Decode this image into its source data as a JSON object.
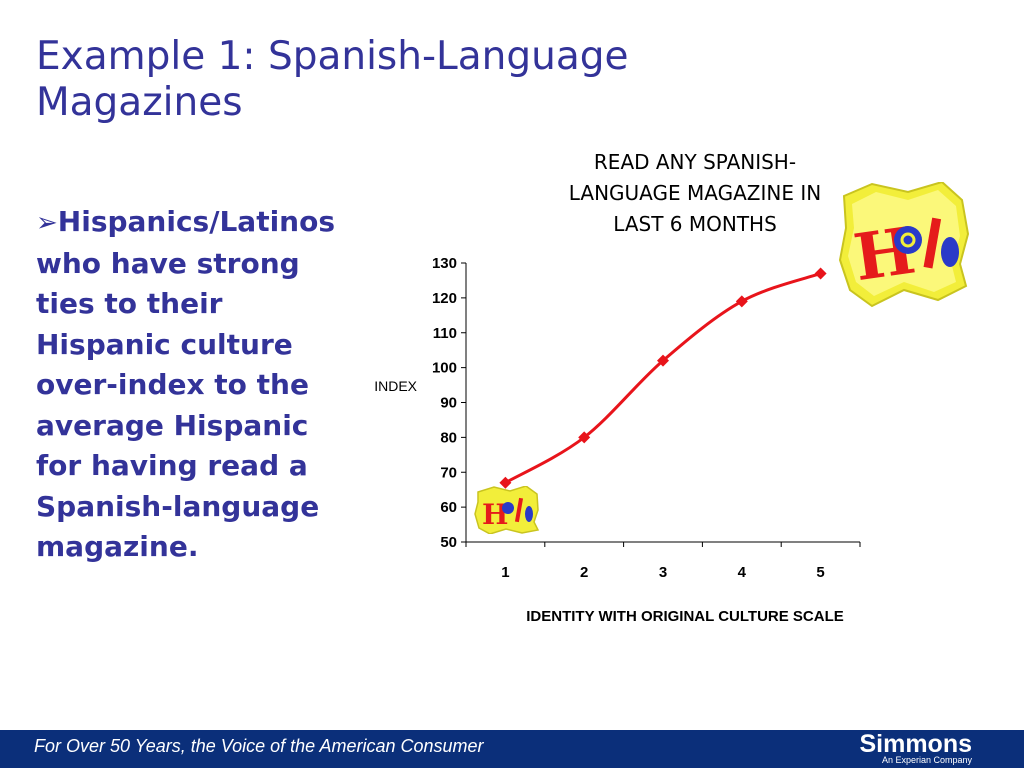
{
  "slide": {
    "title_line1": "Example 1:  Spanish-Language",
    "title_line2": "Magazines",
    "bullet_arrow": "➢",
    "bullet_lines": [
      "Hispanics/Latinos",
      "who have strong",
      "ties to their",
      "Hispanic culture",
      "over-index to the",
      "average Hispanic",
      "for having read a",
      "Spanish-language",
      "magazine."
    ]
  },
  "chart_data": {
    "type": "line",
    "title_lines": [
      "READ ANY SPANISH-",
      "LANGUAGE MAGAZINE IN",
      "LAST 6 MONTHS"
    ],
    "xlabel": "IDENTITY WITH ORIGINAL CULTURE SCALE",
    "ylabel": "INDEX",
    "categories": [
      "1",
      "2",
      "3",
      "4",
      "5"
    ],
    "values": [
      67,
      80,
      102,
      119,
      127
    ],
    "ylim": [
      50,
      130
    ],
    "yticks": [
      50,
      60,
      70,
      80,
      90,
      100,
      110,
      120,
      130
    ],
    "grid": false,
    "line_color": "#e8141b",
    "marker": "diamond"
  },
  "logos": {
    "hola_text": "Hola",
    "hola_colors": {
      "frame": "#f2ee3a",
      "letters_red": "#e51b1b",
      "letters_blue": "#2a3ac8"
    }
  },
  "footer": {
    "tagline": "For Over 50 Years, the Voice of the American Consumer",
    "brand": "Simmons",
    "brand_sub": "An Experian Company",
    "bar_color": "#0b2f7a"
  }
}
